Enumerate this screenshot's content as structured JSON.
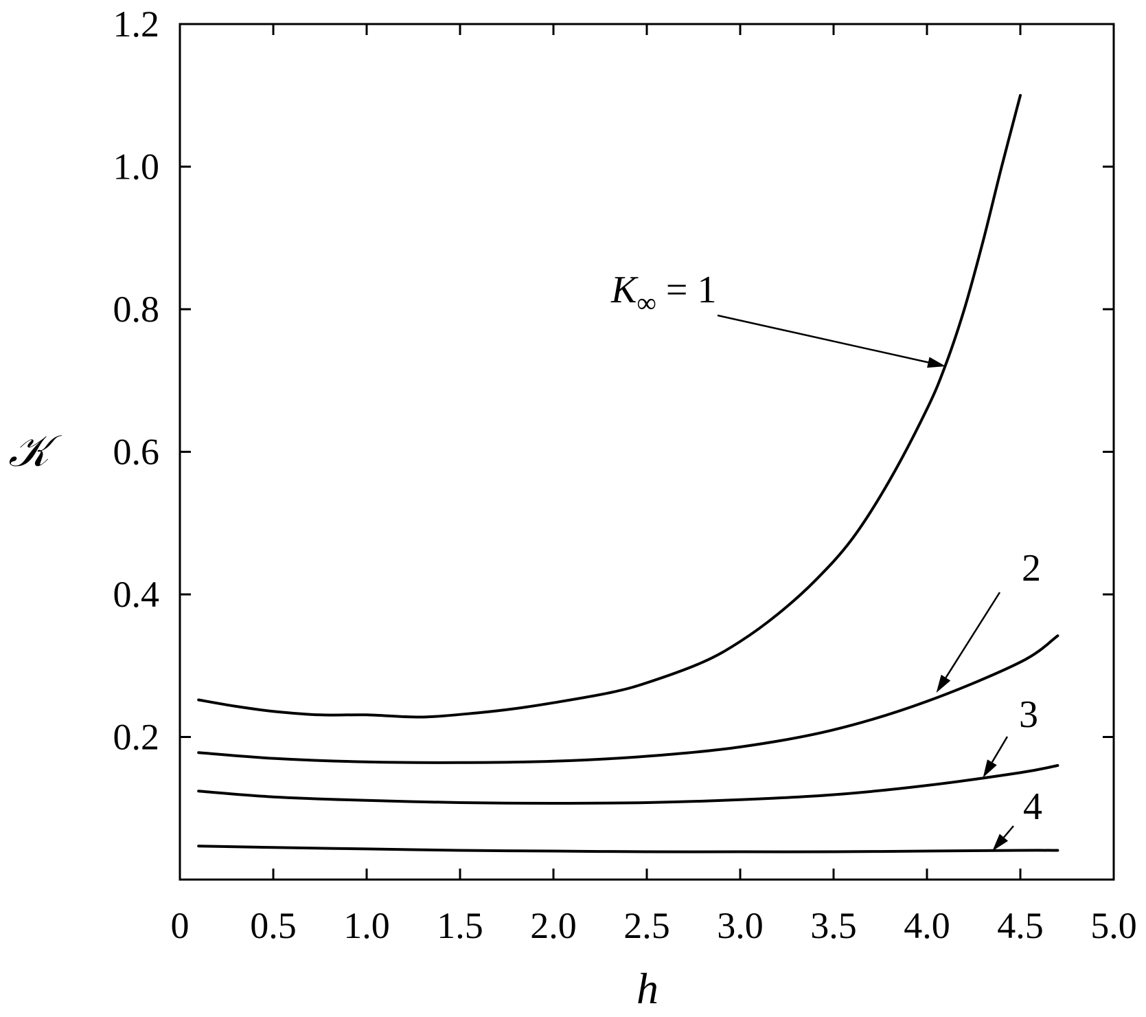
{
  "chart_data": {
    "type": "line",
    "xlabel": "h",
    "ylabel": "𝒦",
    "xlim": [
      0,
      5.0
    ],
    "ylim": [
      0,
      1.2
    ],
    "x_ticks": [
      "0",
      "0.5",
      "1.0",
      "1.5",
      "2.0",
      "2.5",
      "3.0",
      "3.5",
      "4.0",
      "4.5",
      "5.0"
    ],
    "y_ticks": [
      "0.2",
      "0.4",
      "0.6",
      "0.8",
      "1.0",
      "1.2"
    ],
    "grid": false,
    "series": [
      {
        "name": "K∞ = 1",
        "label_parts": {
          "main": "K",
          "sub": "∞",
          "rest": " = 1"
        },
        "annotation_at": [
          4.1,
          0.72
        ],
        "x": [
          0.1,
          0.3,
          0.5,
          0.75,
          1.0,
          1.3,
          1.6,
          1.8,
          2.0,
          2.3,
          2.5,
          2.8,
          3.0,
          3.2,
          3.4,
          3.6,
          3.8,
          4.0,
          4.1,
          4.2,
          4.3,
          4.4,
          4.5
        ],
        "y": [
          0.252,
          0.243,
          0.236,
          0.231,
          0.231,
          0.228,
          0.234,
          0.24,
          0.248,
          0.262,
          0.276,
          0.305,
          0.334,
          0.372,
          0.419,
          0.478,
          0.56,
          0.66,
          0.722,
          0.8,
          0.895,
          1.0,
          1.1
        ]
      },
      {
        "name": "2",
        "annotation_at": [
          4.05,
          0.262
        ],
        "x": [
          0.1,
          0.5,
          1.0,
          1.5,
          2.0,
          2.5,
          3.0,
          3.5,
          4.0,
          4.5,
          4.7
        ],
        "y": [
          0.178,
          0.17,
          0.165,
          0.164,
          0.166,
          0.173,
          0.186,
          0.21,
          0.25,
          0.305,
          0.342
        ]
      },
      {
        "name": "3",
        "annotation_at": [
          4.3,
          0.143
        ],
        "x": [
          0.1,
          0.5,
          1.0,
          1.5,
          2.0,
          2.5,
          3.0,
          3.5,
          4.0,
          4.5,
          4.7
        ],
        "y": [
          0.124,
          0.116,
          0.111,
          0.108,
          0.107,
          0.108,
          0.112,
          0.119,
          0.132,
          0.15,
          0.16
        ]
      },
      {
        "name": "4",
        "annotation_at": [
          4.35,
          0.04
        ],
        "x": [
          0.1,
          0.5,
          1.0,
          1.5,
          2.0,
          2.5,
          3.0,
          3.5,
          4.0,
          4.5,
          4.7
        ],
        "y": [
          0.047,
          0.045,
          0.043,
          0.041,
          0.04,
          0.039,
          0.039,
          0.039,
          0.04,
          0.041,
          0.041
        ]
      }
    ]
  }
}
